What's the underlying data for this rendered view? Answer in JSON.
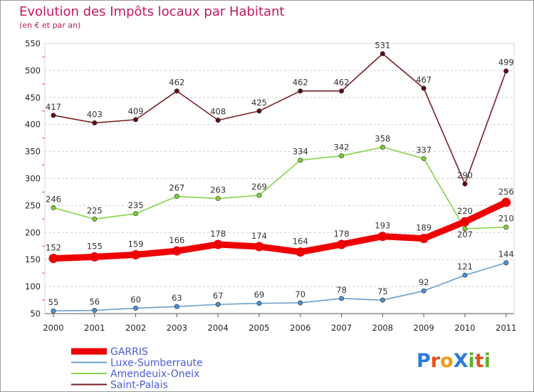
{
  "title": "Evolution des Impôts locaux par Habitant",
  "subtitle": "(en € et par an)",
  "logo": {
    "text": "ProXiti",
    "letters": [
      "P",
      "r",
      "o",
      "X",
      "i",
      "t",
      "i"
    ],
    "colors": [
      "#2a7bd6",
      "#e0541c",
      "#f29a1a",
      "#2a7bd6",
      "#5bb531",
      "#e0541c",
      "#5bb531"
    ]
  },
  "chart_data": {
    "type": "line",
    "title": "Evolution des Impôts locaux par Habitant",
    "subtitle": "(en € et par an)",
    "xlabel": "",
    "ylabel": "",
    "categories": [
      "2000",
      "2001",
      "2002",
      "2003",
      "2004",
      "2005",
      "2006",
      "2007",
      "2008",
      "2009",
      "2010",
      "2011"
    ],
    "yticks": [
      50,
      100,
      150,
      200,
      250,
      300,
      350,
      400,
      450,
      500,
      550
    ],
    "ylim": [
      50,
      550
    ],
    "grid": "horizontal dashed",
    "legend_position": "bottom-left",
    "series": [
      {
        "name": "Saint-Palais",
        "color": "#7a1f24",
        "marker": "#5a0e12",
        "emphasis": false,
        "values": [
          417,
          403,
          409,
          462,
          408,
          425,
          462,
          462,
          531,
          467,
          290,
          499
        ]
      },
      {
        "name": "Amendeuix-Oneix",
        "color": "#88d24a",
        "marker": "#7ccc3c",
        "emphasis": false,
        "values": [
          246,
          225,
          235,
          267,
          263,
          269,
          334,
          342,
          358,
          337,
          207,
          210
        ],
        "labels": [
          "246",
          "225",
          "235",
          "267",
          "263",
          "269",
          "334",
          "342",
          "358",
          "337",
          "",
          "210"
        ]
      },
      {
        "name": "Luxe-Sumberraute",
        "color": "#6aa0cf",
        "marker": "#4a8fd0",
        "emphasis": false,
        "values": [
          55,
          56,
          60,
          63,
          67,
          69,
          70,
          78,
          75,
          92,
          121,
          144
        ]
      },
      {
        "name": "GARRIS",
        "color": "#ee0000",
        "marker": "#ee0000",
        "emphasis": true,
        "values": [
          152,
          155,
          159,
          166,
          178,
          174,
          164,
          178,
          193,
          189,
          220,
          256
        ]
      }
    ],
    "overlap_label": {
      "value": "207",
      "series": "Amendeuix-Oneix"
    },
    "legend": [
      "GARRIS",
      "Luxe-Sumberraute",
      "Amendeuix-Oneix",
      "Saint-Palais"
    ]
  }
}
